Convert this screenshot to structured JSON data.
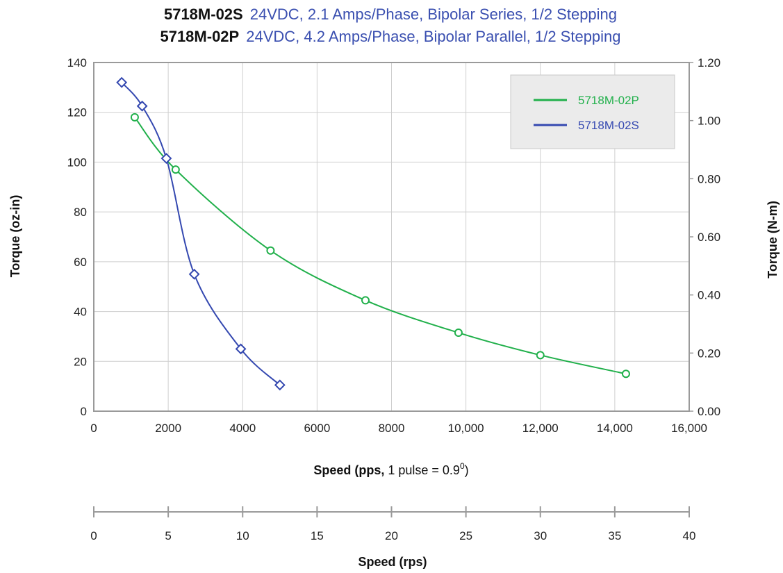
{
  "colors": {
    "series_p": "#21b04b",
    "series_s": "#3448b0",
    "title_spec": "#3a4fb0",
    "grid": "#cfcfcf",
    "frame": "#9a9a9a",
    "legend_bg": "#ebebeb"
  },
  "chart_data": {
    "type": "line",
    "title": {
      "line1": {
        "model": "5718M-02S",
        "spec": "24VDC, 2.1 Amps/Phase, Bipolar Series, 1/2 Stepping"
      },
      "line2": {
        "model": "5718M-02P",
        "spec": "24VDC, 4.2 Amps/Phase, Bipolar Parallel, 1/2 Stepping"
      }
    },
    "xlabel_bold": "Speed (pps,",
    "xlabel_normal": " 1 pulse = 0.9",
    "xlabel_sup": "0",
    "xlabel_close": ")",
    "ylabel_left": "Torque (oz-in)",
    "ylabel_right": "Torque (N-m)",
    "x2label": "Speed (rps)",
    "xlim": [
      0,
      16000
    ],
    "ylim": [
      0,
      140
    ],
    "ylim_right": [
      0,
      1.2
    ],
    "x2lim": [
      0,
      40
    ],
    "xticks": [
      "0",
      "2000",
      "4000",
      "6000",
      "8000",
      "10,000",
      "12,000",
      "14,000",
      "16,000"
    ],
    "yticks": [
      "0",
      "20",
      "40",
      "60",
      "80",
      "100",
      "120",
      "140"
    ],
    "yticks_right": [
      "0.00",
      "0.20",
      "0.40",
      "0.60",
      "0.80",
      "1.00",
      "1.20"
    ],
    "x2ticks": [
      "0",
      "5",
      "10",
      "15",
      "20",
      "25",
      "30",
      "35",
      "40"
    ],
    "grid": true,
    "legend_position": "top-right",
    "series": [
      {
        "name": "5718M-02P",
        "marker": "circle",
        "color": "#21b04b",
        "points": [
          [
            1100,
            118
          ],
          [
            2200,
            97
          ],
          [
            4750,
            64.5
          ],
          [
            7300,
            44.5
          ],
          [
            9800,
            31.5
          ],
          [
            12000,
            22.5
          ],
          [
            14300,
            15
          ]
        ]
      },
      {
        "name": "5718M-02S",
        "marker": "diamond",
        "color": "#3448b0",
        "points": [
          [
            750,
            132
          ],
          [
            1300,
            122.5
          ],
          [
            1950,
            101.5
          ],
          [
            2700,
            55
          ],
          [
            3950,
            25
          ],
          [
            5000,
            10.5
          ]
        ]
      }
    ]
  }
}
